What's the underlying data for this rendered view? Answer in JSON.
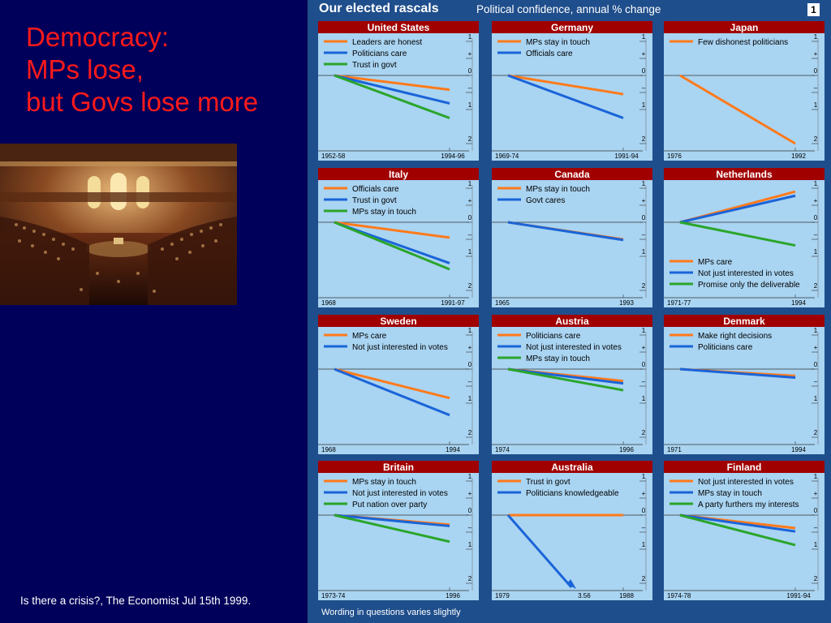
{
  "slide": {
    "title_lines": [
      "Democracy:",
      "MPs lose,",
      "but Govs lose more"
    ],
    "caption": "Is there a crisis?, The Economist Jul 15th 1999."
  },
  "figure": {
    "title": "Our elected rascals",
    "subtitle": "Political confidence, annual % change",
    "number": "1",
    "footnote": "Wording in questions varies slightly"
  },
  "colors": {
    "orange": "#ff7a1a",
    "blue": "#1a64d8",
    "green": "#2aa52a",
    "title_bar": "#a00000",
    "plot_bg": "#a9d4f2",
    "background": "#00005a",
    "figure_bg": "#1f4e8c"
  },
  "chart_data": [
    {
      "type": "line",
      "title": "United States",
      "x": [
        "1952-58",
        "1994-96"
      ],
      "ylim": [
        -2,
        1
      ],
      "yticks": [
        "1",
        "+",
        "0",
        "–",
        "1",
        "2"
      ],
      "legend_position": "top-left",
      "series": [
        {
          "name": "Leaders are honest",
          "color": "orange",
          "values": [
            0,
            -0.42
          ]
        },
        {
          "name": "Politicians care",
          "color": "blue",
          "values": [
            0,
            -0.82
          ]
        },
        {
          "name": "Trust in govt",
          "color": "green",
          "values": [
            0,
            -1.25
          ]
        }
      ]
    },
    {
      "type": "line",
      "title": "Germany",
      "x": [
        "1969-74",
        "1991-94"
      ],
      "ylim": [
        -2,
        1
      ],
      "yticks": [
        "1",
        "+",
        "0",
        "–",
        "1",
        "2"
      ],
      "legend_position": "top-left",
      "series": [
        {
          "name": "MPs stay in touch",
          "color": "orange",
          "values": [
            0,
            -0.55
          ]
        },
        {
          "name": "Officials care",
          "color": "blue",
          "values": [
            0,
            -1.25
          ]
        }
      ]
    },
    {
      "type": "line",
      "title": "Japan",
      "x": [
        "1976",
        "1992"
      ],
      "ylim": [
        -2,
        1
      ],
      "yticks": [
        "1",
        "+",
        "0",
        "–",
        "1",
        "2"
      ],
      "legend_position": "top-left",
      "series": [
        {
          "name": "Few dishonest politicians",
          "color": "orange",
          "values": [
            0,
            -2.0
          ]
        }
      ]
    },
    {
      "type": "line",
      "title": "Italy",
      "x": [
        "1968",
        "1991-97"
      ],
      "ylim": [
        -2,
        1
      ],
      "yticks": [
        "1",
        "+",
        "0",
        "–",
        "1",
        "2"
      ],
      "legend_position": "top-left",
      "series": [
        {
          "name": "Officials care",
          "color": "orange",
          "values": [
            0,
            -0.45
          ]
        },
        {
          "name": "Trust in govt",
          "color": "blue",
          "values": [
            0,
            -1.2
          ]
        },
        {
          "name": "MPs stay in touch",
          "color": "green",
          "values": [
            0,
            -1.38
          ]
        }
      ]
    },
    {
      "type": "line",
      "title": "Canada",
      "x": [
        "1965",
        "1993"
      ],
      "ylim": [
        -2,
        1
      ],
      "yticks": [
        "1",
        "+",
        "0",
        "–",
        "1",
        "2"
      ],
      "legend_position": "top-left",
      "series": [
        {
          "name": "MPs stay in touch",
          "color": "orange",
          "values": [
            0,
            -0.5
          ]
        },
        {
          "name": "Govt cares",
          "color": "blue",
          "values": [
            0,
            -0.52
          ]
        }
      ]
    },
    {
      "type": "line",
      "title": "Netherlands",
      "x": [
        "1971-77",
        "1994"
      ],
      "ylim": [
        -2,
        1
      ],
      "yticks": [
        "1",
        "+",
        "0",
        "–",
        "1",
        "2"
      ],
      "legend_position": "bottom-left",
      "series": [
        {
          "name": "MPs care",
          "color": "orange",
          "values": [
            0,
            0.9
          ]
        },
        {
          "name": "Not just interested in votes",
          "color": "blue",
          "values": [
            0,
            0.78
          ]
        },
        {
          "name": "Promise only the deliverable",
          "color": "green",
          "values": [
            0,
            -0.68
          ]
        }
      ]
    },
    {
      "type": "line",
      "title": "Sweden",
      "x": [
        "1968",
        "1994"
      ],
      "ylim": [
        -2,
        1
      ],
      "yticks": [
        "1",
        "+",
        "0",
        "–",
        "1",
        "2"
      ],
      "legend_position": "top-left",
      "series": [
        {
          "name": "MPs care",
          "color": "orange",
          "values": [
            0,
            -0.85
          ]
        },
        {
          "name": "Not just interested in votes",
          "color": "blue",
          "values": [
            0,
            -1.35
          ]
        }
      ]
    },
    {
      "type": "line",
      "title": "Austria",
      "x": [
        "1974",
        "1996"
      ],
      "ylim": [
        -2,
        1
      ],
      "yticks": [
        "1",
        "+",
        "0",
        "–",
        "1",
        "2"
      ],
      "legend_position": "top-left",
      "series": [
        {
          "name": "Politicians care",
          "color": "orange",
          "values": [
            0,
            -0.35
          ]
        },
        {
          "name": "Not just interested in votes",
          "color": "blue",
          "values": [
            0,
            -0.42
          ]
        },
        {
          "name": "MPs stay in touch",
          "color": "green",
          "values": [
            0,
            -0.62
          ]
        }
      ]
    },
    {
      "type": "line",
      "title": "Denmark",
      "x": [
        "1971",
        "1994"
      ],
      "ylim": [
        -2,
        1
      ],
      "yticks": [
        "1",
        "+",
        "0",
        "–",
        "1",
        "2"
      ],
      "legend_position": "top-left",
      "series": [
        {
          "name": "Make right decisions",
          "color": "orange",
          "values": [
            0,
            -0.2
          ]
        },
        {
          "name": "Politicians care",
          "color": "blue",
          "values": [
            0,
            -0.25
          ]
        }
      ]
    },
    {
      "type": "line",
      "title": "Britain",
      "x": [
        "1973-74",
        "1996"
      ],
      "ylim": [
        -2,
        1
      ],
      "yticks": [
        "1",
        "+",
        "0",
        "–",
        "1",
        "2"
      ],
      "legend_position": "top-left",
      "series": [
        {
          "name": "MPs stay in touch",
          "color": "orange",
          "values": [
            0,
            -0.28
          ]
        },
        {
          "name": "Not just interested in votes",
          "color": "blue",
          "values": [
            0,
            -0.32
          ]
        },
        {
          "name": "Put nation over party",
          "color": "green",
          "values": [
            0,
            -0.78
          ]
        }
      ]
    },
    {
      "type": "line",
      "title": "Australia",
      "x": [
        "1979",
        "1988"
      ],
      "ylim": [
        -2,
        1
      ],
      "yticks": [
        "1",
        "+",
        "0",
        "–",
        "1",
        "2"
      ],
      "legend_position": "top-left",
      "annotation": "3.56",
      "series": [
        {
          "name": "Trust in govt",
          "color": "orange",
          "values": [
            0,
            0
          ]
        },
        {
          "name": "Politicians knowledgeable",
          "color": "blue",
          "values": [
            0,
            -3.56
          ]
        }
      ]
    },
    {
      "type": "line",
      "title": "Finland",
      "x": [
        "1974-78",
        "1991-94"
      ],
      "ylim": [
        -2,
        1
      ],
      "yticks": [
        "1",
        "+",
        "0",
        "–",
        "1",
        "2"
      ],
      "legend_position": "top-left",
      "series": [
        {
          "name": "Not just interested in votes",
          "color": "orange",
          "values": [
            0,
            -0.38
          ]
        },
        {
          "name": "MPs stay in touch",
          "color": "blue",
          "values": [
            0,
            -0.48
          ]
        },
        {
          "name": "A party furthers my interests",
          "color": "green",
          "values": [
            0,
            -0.88
          ]
        }
      ]
    }
  ]
}
